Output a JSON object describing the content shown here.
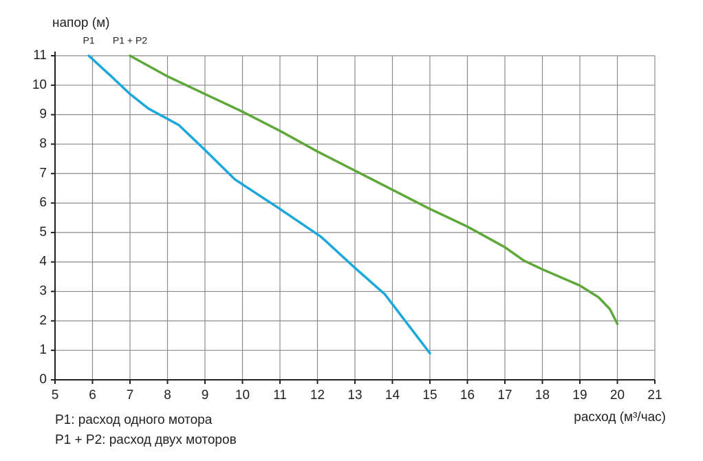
{
  "chart_data": {
    "type": "line",
    "ylabel": "напор (м)",
    "xlabel": "расход (м³/час)",
    "notes": [
      "P1: расход одного мотора",
      "P1 + P2: расход двух моторов"
    ],
    "series": [
      {
        "name": "P1",
        "color": "#1aa7dc",
        "x": [
          5.9,
          6.5,
          7,
          7.5,
          8.3,
          9,
          9.8,
          11,
          12.1,
          13,
          13.8,
          15
        ],
        "values": [
          11,
          10.3,
          9.7,
          9.2,
          8.65,
          7.8,
          6.8,
          5.8,
          4.85,
          3.8,
          2.9,
          0.9
        ]
      },
      {
        "name": "P1 + P2",
        "color": "#5ea73a",
        "x": [
          7,
          8,
          9,
          10,
          11,
          12,
          13,
          14,
          15,
          16,
          17,
          17.5,
          18,
          19,
          19.5,
          19.8,
          20
        ],
        "values": [
          11,
          10.3,
          9.7,
          9.1,
          8.45,
          7.75,
          7.1,
          6.45,
          5.8,
          5.2,
          4.5,
          4.05,
          3.75,
          3.2,
          2.8,
          2.4,
          1.9
        ]
      }
    ],
    "xlim": [
      5,
      21
    ],
    "ylim": [
      0,
      11
    ],
    "xticks": [
      5,
      6,
      7,
      8,
      9,
      10,
      11,
      12,
      13,
      14,
      15,
      16,
      17,
      18,
      19,
      20,
      21
    ],
    "yticks": [
      0,
      1,
      2,
      3,
      4,
      5,
      6,
      7,
      8,
      9,
      10,
      11
    ],
    "grid": true
  }
}
